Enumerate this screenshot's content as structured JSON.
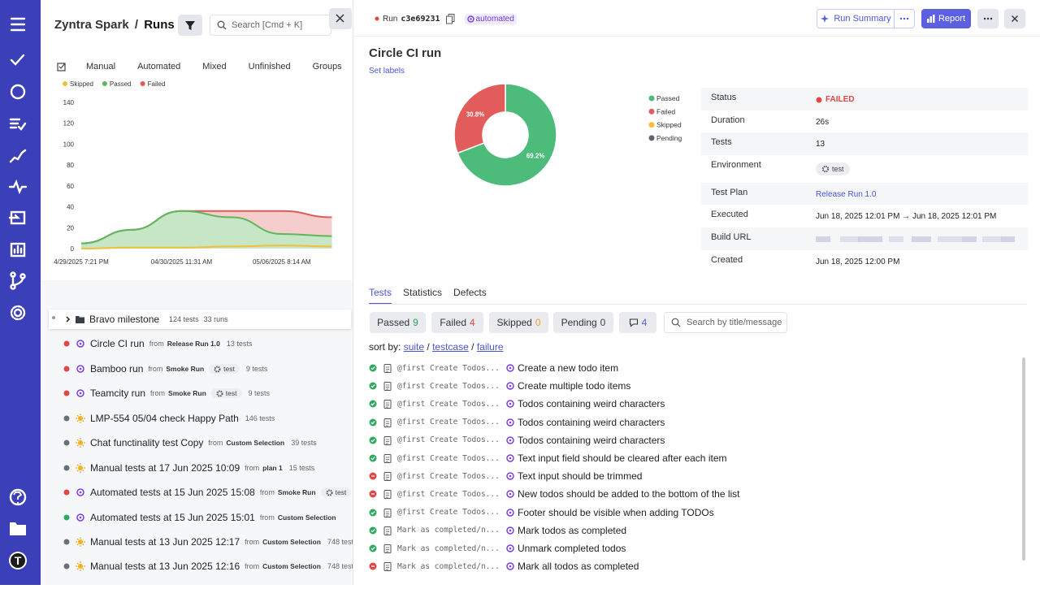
{
  "nav": {
    "logo": "T"
  },
  "left": {
    "header": {
      "brand": "Zyntra Spark",
      "separator": "/",
      "page": "Runs",
      "search_placeholder": "Search [Cmd + K]"
    },
    "tabs": [
      "Manual",
      "Automated",
      "Mixed",
      "Unfinished",
      "Groups"
    ],
    "trend_chart": {
      "type": "area",
      "categories": [
        "4/29/2025 7:21 PM",
        null,
        "04/30/2025 11:31 AM",
        null,
        "05/06/2025 8:14 AM",
        null
      ],
      "series": [
        {
          "name": "Skipped",
          "color": "#f2c037",
          "values": [
            0,
            1,
            1,
            2,
            3,
            2
          ]
        },
        {
          "name": "Passed",
          "color": "#5cb85c",
          "values": [
            5,
            18,
            36,
            30,
            14,
            12
          ]
        },
        {
          "name": "Failed",
          "color": "#e05a5a",
          "values": [
            0,
            0,
            0,
            6,
            22,
            18
          ]
        }
      ],
      "ylim": [
        0,
        140
      ],
      "yticks": [
        0,
        20,
        40,
        60,
        80,
        100,
        120,
        140
      ]
    },
    "group": {
      "name": "Bravo milestone",
      "tests": "124 tests",
      "runs": "33 runs"
    },
    "from_label": "from",
    "runs": [
      {
        "status": "failed",
        "kind": "automated",
        "name": "Circle CI run",
        "source": "Release Run 1.0",
        "tests": "13 tests"
      },
      {
        "status": "failed",
        "kind": "automated",
        "name": "Bamboo run",
        "source": "Smoke Run",
        "tag": "test",
        "tests": "9 tests"
      },
      {
        "status": "failed",
        "kind": "automated",
        "name": "Teamcity run",
        "source": "Smoke Run",
        "tag": "test",
        "tests": "9 tests"
      },
      {
        "status": "neutral",
        "kind": "manual",
        "name": "LMP-554 05/04 check Happy Path",
        "tests": "146 tests"
      },
      {
        "status": "neutral",
        "kind": "manual",
        "name": "Chat functinality test Copy",
        "source": "Custom Selection",
        "tests": "39 tests"
      },
      {
        "status": "neutral",
        "kind": "manual",
        "name": "Manual tests at 17 Jun 2025 10:09",
        "source": "plan 1",
        "tests": "15 tests"
      },
      {
        "status": "failed",
        "kind": "automated",
        "name": "Automated tests at 15 Jun 2025 15:08",
        "source": "Smoke Run",
        "tag": "test"
      },
      {
        "status": "passed",
        "kind": "automated",
        "name": "Automated tests at 15 Jun 2025 15:01",
        "source": "Custom Selection"
      },
      {
        "status": "neutral",
        "kind": "manual",
        "name": "Manual tests at 13 Jun 2025 12:17",
        "source": "Custom Selection",
        "tests": "748 tests"
      },
      {
        "status": "neutral",
        "kind": "manual",
        "name": "Manual tests at 13 Jun 2025 12:16",
        "source": "Custom Selection",
        "tests": "748 tests"
      }
    ]
  },
  "run": {
    "topbar": {
      "run_label": "Run",
      "run_id": "c3e69231",
      "run_type": "automated",
      "summary_button": "Run Summary",
      "report_button": "Report"
    },
    "title": "Circle CI run",
    "set_labels": "Set labels",
    "donut": {
      "type": "pie",
      "categories": [
        "Passed",
        "Failed",
        "Skipped",
        "Pending"
      ],
      "values": [
        69.2,
        30.8,
        0,
        0
      ],
      "value_labels": [
        "69.2%",
        "30.8%",
        null,
        null
      ],
      "colors": [
        "#4dbb7a",
        "#e25c5c",
        "#f2c037",
        "#5f6470"
      ]
    },
    "details": [
      {
        "label": "Status",
        "value": "FAILED"
      },
      {
        "label": "Duration",
        "value": "26s"
      },
      {
        "label": "Tests",
        "value": "13"
      },
      {
        "label": "Environment",
        "value": "test"
      },
      {
        "label": "Test Plan",
        "value": "Release Run 1.0"
      },
      {
        "label": "Executed",
        "value": "Jun 18, 2025 12:01 PM → Jun 18, 2025 12:01 PM"
      },
      {
        "label": "Build URL"
      },
      {
        "label": "Created",
        "value": "Jun 18, 2025 12:00 PM"
      }
    ],
    "tabs": [
      "Tests",
      "Statistics",
      "Defects"
    ],
    "filters": [
      {
        "label": "Passed",
        "count": "9",
        "color": "#2e9e5b"
      },
      {
        "label": "Failed",
        "count": "4",
        "color": "#e04848"
      },
      {
        "label": "Skipped",
        "count": "0",
        "color": "#f0a020"
      },
      {
        "label": "Pending",
        "count": "0",
        "color": "#444"
      }
    ],
    "comments_count": "4",
    "search_placeholder": "Search by title/message",
    "sort": {
      "label": "sort by:",
      "options": [
        "suite",
        "testcase",
        "failure"
      ],
      "separator": "/"
    },
    "tests": [
      {
        "status": "passed",
        "suite": "@first Create Todos...",
        "title": "Create a new todo item"
      },
      {
        "status": "passed",
        "suite": "@first Create Todos...",
        "title": "Create multiple todo items"
      },
      {
        "status": "passed",
        "suite": "@first Create Todos...",
        "title": "Todos containing weird characters"
      },
      {
        "status": "passed",
        "suite": "@first Create Todos...",
        "title": "Todos containing weird characters"
      },
      {
        "status": "passed",
        "suite": "@first Create Todos...",
        "title": "Todos containing weird characters"
      },
      {
        "status": "passed",
        "suite": "@first Create Todos...",
        "title": "Text input field should be cleared after each item"
      },
      {
        "status": "failed",
        "suite": "@first Create Todos...",
        "title": "Text input should be trimmed"
      },
      {
        "status": "failed",
        "suite": "@first Create Todos...",
        "title": "New todos should be added to the bottom of the list"
      },
      {
        "status": "passed",
        "suite": "@first Create Todos...",
        "title": "Footer should be visible when adding TODOs"
      },
      {
        "status": "passed",
        "suite": "Mark as completed/n...",
        "title": "Mark todos as completed"
      },
      {
        "status": "passed",
        "suite": "Mark as completed/n...",
        "title": "Unmark completed todos"
      },
      {
        "status": "failed",
        "suite": "Mark as completed/n...",
        "title": "Mark all todos as completed"
      }
    ]
  }
}
